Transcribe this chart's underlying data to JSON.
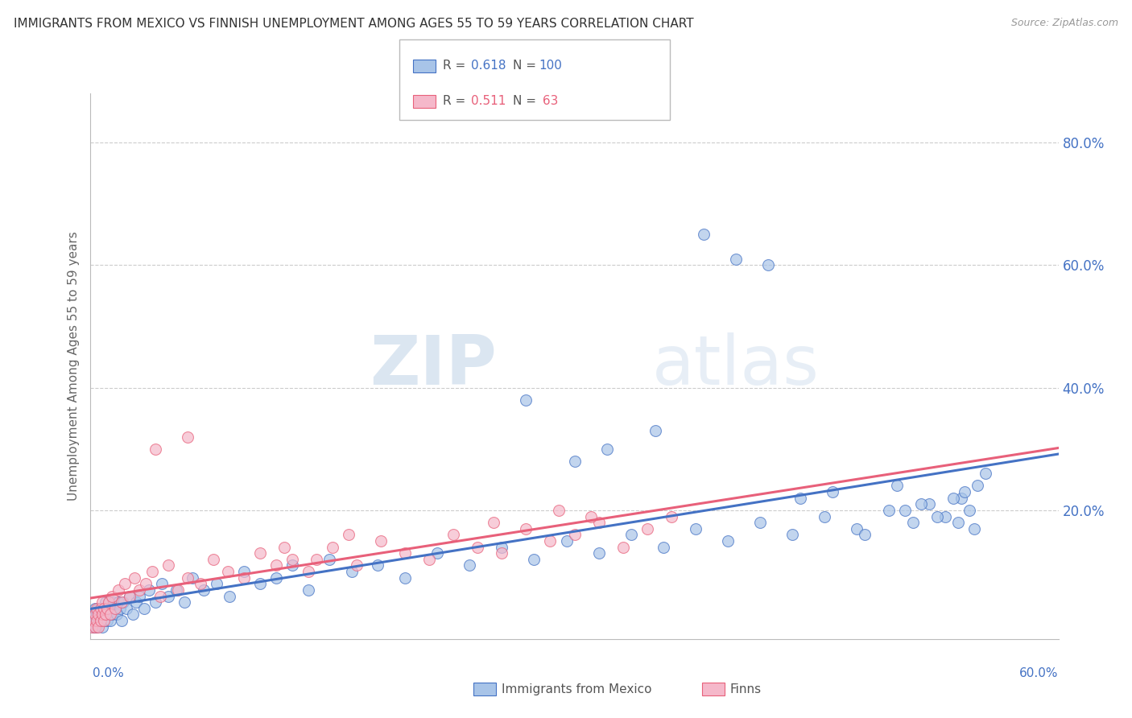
{
  "title": "IMMIGRANTS FROM MEXICO VS FINNISH UNEMPLOYMENT AMONG AGES 55 TO 59 YEARS CORRELATION CHART",
  "source": "Source: ZipAtlas.com",
  "ylabel": "Unemployment Among Ages 55 to 59 years",
  "xlim": [
    0.0,
    0.6
  ],
  "ylim": [
    -0.01,
    0.88
  ],
  "blue_color": "#a8c4e8",
  "pink_color": "#f5b8ca",
  "blue_line_color": "#4472c4",
  "pink_line_color": "#e8607a",
  "background_color": "#ffffff",
  "grid_color": "#cccccc",
  "blue_scatter_x": [
    0.001,
    0.002,
    0.002,
    0.003,
    0.003,
    0.003,
    0.004,
    0.004,
    0.004,
    0.005,
    0.005,
    0.005,
    0.006,
    0.006,
    0.007,
    0.007,
    0.007,
    0.008,
    0.008,
    0.009,
    0.009,
    0.01,
    0.01,
    0.011,
    0.011,
    0.012,
    0.012,
    0.013,
    0.014,
    0.015,
    0.016,
    0.017,
    0.018,
    0.019,
    0.02,
    0.022,
    0.024,
    0.026,
    0.028,
    0.03,
    0.033,
    0.036,
    0.04,
    0.044,
    0.048,
    0.053,
    0.058,
    0.063,
    0.07,
    0.078,
    0.086,
    0.095,
    0.105,
    0.115,
    0.125,
    0.135,
    0.148,
    0.162,
    0.178,
    0.195,
    0.215,
    0.235,
    0.255,
    0.275,
    0.295,
    0.315,
    0.335,
    0.355,
    0.375,
    0.395,
    0.415,
    0.435,
    0.455,
    0.475,
    0.495,
    0.51,
    0.52,
    0.53,
    0.54,
    0.545,
    0.27,
    0.3,
    0.32,
    0.35,
    0.38,
    0.4,
    0.42,
    0.44,
    0.46,
    0.48,
    0.5,
    0.505,
    0.515,
    0.525,
    0.535,
    0.538,
    0.542,
    0.548,
    0.55,
    0.555
  ],
  "blue_scatter_y": [
    0.02,
    0.01,
    0.03,
    0.02,
    0.01,
    0.04,
    0.02,
    0.03,
    0.01,
    0.03,
    0.02,
    0.04,
    0.03,
    0.02,
    0.04,
    0.01,
    0.03,
    0.04,
    0.02,
    0.03,
    0.05,
    0.02,
    0.04,
    0.03,
    0.05,
    0.02,
    0.04,
    0.03,
    0.05,
    0.04,
    0.03,
    0.05,
    0.04,
    0.02,
    0.05,
    0.04,
    0.06,
    0.03,
    0.05,
    0.06,
    0.04,
    0.07,
    0.05,
    0.08,
    0.06,
    0.07,
    0.05,
    0.09,
    0.07,
    0.08,
    0.06,
    0.1,
    0.08,
    0.09,
    0.11,
    0.07,
    0.12,
    0.1,
    0.11,
    0.09,
    0.13,
    0.11,
    0.14,
    0.12,
    0.15,
    0.13,
    0.16,
    0.14,
    0.17,
    0.15,
    0.18,
    0.16,
    0.19,
    0.17,
    0.2,
    0.18,
    0.21,
    0.19,
    0.22,
    0.2,
    0.38,
    0.28,
    0.3,
    0.33,
    0.65,
    0.61,
    0.6,
    0.22,
    0.23,
    0.16,
    0.24,
    0.2,
    0.21,
    0.19,
    0.22,
    0.18,
    0.23,
    0.17,
    0.24,
    0.26
  ],
  "pink_scatter_x": [
    0.001,
    0.002,
    0.003,
    0.003,
    0.004,
    0.004,
    0.005,
    0.005,
    0.006,
    0.006,
    0.007,
    0.007,
    0.008,
    0.008,
    0.009,
    0.01,
    0.011,
    0.012,
    0.013,
    0.015,
    0.017,
    0.019,
    0.021,
    0.024,
    0.027,
    0.03,
    0.034,
    0.038,
    0.043,
    0.048,
    0.054,
    0.06,
    0.068,
    0.076,
    0.085,
    0.095,
    0.105,
    0.115,
    0.125,
    0.135,
    0.15,
    0.165,
    0.18,
    0.195,
    0.21,
    0.225,
    0.24,
    0.255,
    0.27,
    0.285,
    0.3,
    0.315,
    0.33,
    0.345,
    0.36,
    0.12,
    0.14,
    0.16,
    0.29,
    0.31,
    0.25,
    0.06,
    0.04
  ],
  "pink_scatter_y": [
    0.01,
    0.02,
    0.01,
    0.03,
    0.02,
    0.04,
    0.01,
    0.03,
    0.02,
    0.04,
    0.03,
    0.05,
    0.02,
    0.04,
    0.03,
    0.04,
    0.05,
    0.03,
    0.06,
    0.04,
    0.07,
    0.05,
    0.08,
    0.06,
    0.09,
    0.07,
    0.08,
    0.1,
    0.06,
    0.11,
    0.07,
    0.09,
    0.08,
    0.12,
    0.1,
    0.09,
    0.13,
    0.11,
    0.12,
    0.1,
    0.14,
    0.11,
    0.15,
    0.13,
    0.12,
    0.16,
    0.14,
    0.13,
    0.17,
    0.15,
    0.16,
    0.18,
    0.14,
    0.17,
    0.19,
    0.14,
    0.12,
    0.16,
    0.2,
    0.19,
    0.18,
    0.32,
    0.3
  ]
}
